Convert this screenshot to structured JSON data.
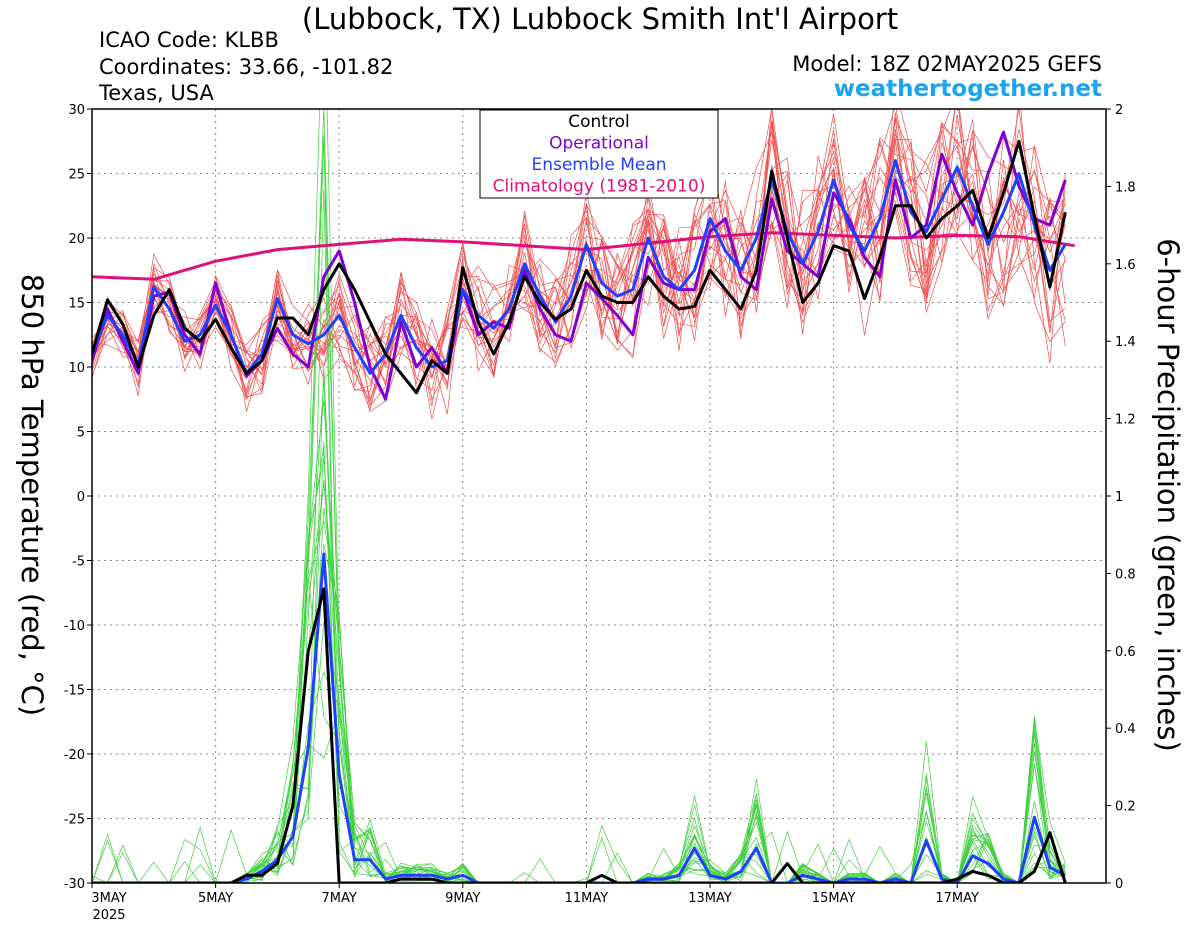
{
  "title": "(Lubbock, TX) Lubbock Smith Int'l Airport",
  "info": {
    "icao": "ICAO Code: KLBB",
    "coords": "Coordinates: 33.66, -101.82",
    "region": "Texas, USA",
    "model": "Model: 18Z 02MAY2025 GEFS",
    "site": "weathertogether.net"
  },
  "chart_data": {
    "type": "line",
    "title": "(Lubbock, TX) Lubbock Smith Int'l Airport",
    "ylabel": "850 hPa Temperature (red, °C)",
    "y2label": "6-hour Precipitation (green, inches)",
    "ylim": [
      -30,
      30
    ],
    "y2lim": [
      0,
      2
    ],
    "xlim_days": [
      0,
      15.9
    ],
    "x_ticks": [
      {
        "day": 0,
        "label": "3MAY",
        "sub": "2025"
      },
      {
        "day": 2,
        "label": "5MAY"
      },
      {
        "day": 4,
        "label": "7MAY"
      },
      {
        "day": 6,
        "label": "9MAY"
      },
      {
        "day": 8,
        "label": "11MAY"
      },
      {
        "day": 10,
        "label": "13MAY"
      },
      {
        "day": 12,
        "label": "15MAY"
      },
      {
        "day": 14,
        "label": "17MAY"
      }
    ],
    "y_ticks": [
      30,
      25,
      20,
      15,
      10,
      5,
      0,
      -5,
      -10,
      -15,
      -20,
      -25,
      -30
    ],
    "y2_ticks": [
      "2",
      "1.8",
      "1.6",
      "1.4",
      "1.2",
      "1",
      "0.8",
      "0.6",
      "0.4",
      "0.2",
      "0"
    ],
    "grid": true,
    "legend": {
      "position": "top-center",
      "entries": [
        {
          "name": "Control",
          "color": "#000000"
        },
        {
          "name": "Operational",
          "color": "#8000d0"
        },
        {
          "name": "Ensemble Mean",
          "color": "#2040ff"
        },
        {
          "name": "Climatology (1981-2010)",
          "color": "#e0107a"
        }
      ]
    },
    "colors": {
      "members_temp": "#f05050",
      "members_precip": "#40d040",
      "control": "#000000",
      "operational": "#8000d0",
      "mean": "#2040ff",
      "climatology": "#e0107a"
    },
    "step_days": 0.25,
    "temperature": {
      "control": [
        11.0,
        15.2,
        13.3,
        10.0,
        14.0,
        16.0,
        13.0,
        12.0,
        13.7,
        11.5,
        9.5,
        10.5,
        13.8,
        13.8,
        12.5,
        16.0,
        18.0,
        16.0,
        13.5,
        11.0,
        9.5,
        8.0,
        10.5,
        9.5,
        17.7,
        13.5,
        11.0,
        13.5,
        17.0,
        15.0,
        13.7,
        14.5,
        17.5,
        15.5,
        15.0,
        15.0,
        17.0,
        15.5,
        14.5,
        14.7,
        17.5,
        16.0,
        14.5,
        17.5,
        25.2,
        20.0,
        15.0,
        16.5,
        19.4,
        19.0,
        15.3,
        18.5,
        22.5,
        22.5,
        20.0,
        21.5,
        22.5,
        23.7,
        20.0,
        23.5,
        27.5,
        21.7,
        16.2,
        22.0
      ],
      "operational": [
        10.5,
        14.5,
        12.0,
        9.5,
        15.5,
        15.8,
        12.5,
        11.0,
        16.5,
        12.5,
        9.3,
        10.5,
        13.0,
        11.0,
        10.0,
        17.0,
        19.0,
        15.0,
        10.0,
        7.5,
        13.5,
        10.0,
        11.5,
        9.5,
        16.0,
        12.5,
        13.5,
        13.0,
        17.5,
        14.5,
        12.5,
        12.0,
        16.5,
        15.3,
        14.0,
        12.5,
        18.5,
        16.5,
        16.0,
        16.0,
        20.5,
        21.5,
        17.0,
        16.0,
        23.0,
        19.0,
        18.0,
        17.0,
        23.5,
        21.5,
        18.5,
        17.0,
        24.5,
        20.0,
        21.0,
        26.5,
        23.5,
        21.0,
        25.0,
        28.2,
        24.0,
        21.5,
        21.0,
        24.5
      ],
      "mean": [
        11.0,
        14.0,
        12.5,
        10.2,
        16.2,
        14.5,
        12.0,
        12.5,
        14.8,
        12.5,
        9.5,
        11.0,
        15.3,
        12.5,
        11.8,
        12.5,
        14.0,
        11.5,
        9.5,
        11.0,
        14.0,
        11.5,
        10.0,
        10.5,
        16.0,
        14.0,
        13.0,
        14.5,
        18.0,
        15.5,
        13.5,
        15.5,
        19.5,
        16.5,
        15.5,
        16.0,
        20.0,
        17.0,
        16.0,
        17.5,
        21.5,
        19.0,
        17.5,
        20.0,
        24.5,
        20.5,
        18.0,
        20.5,
        24.5,
        21.0,
        19.0,
        21.5,
        26.0,
        22.0,
        20.5,
        23.0,
        25.5,
        22.5,
        19.5,
        22.0,
        25.0,
        21.0,
        17.5,
        19.5
      ],
      "climatology_days": [
        0,
        1,
        2,
        3,
        4,
        5,
        6,
        7,
        8,
        9,
        10,
        11,
        12,
        13,
        14,
        15,
        15.9
      ],
      "climatology": [
        17.0,
        16.8,
        18.2,
        19.1,
        19.5,
        19.9,
        19.7,
        19.4,
        19.1,
        19.6,
        20.1,
        20.4,
        20.2,
        20.0,
        20.2,
        20.1,
        19.4
      ]
    },
    "precipitation": {
      "control": [
        0,
        0,
        0,
        0,
        0,
        0,
        0,
        0,
        0,
        0,
        0.02,
        0.02,
        0.05,
        0.2,
        0.6,
        0.76,
        0,
        0,
        0,
        0,
        0.01,
        0.01,
        0.01,
        0,
        0,
        0,
        0,
        0,
        0,
        0,
        0,
        0,
        0,
        0.02,
        0,
        0,
        0,
        0,
        0,
        0,
        0,
        0,
        0,
        0,
        0,
        0.05,
        0,
        0,
        0,
        0,
        0,
        0,
        0,
        0,
        0,
        0,
        0.01,
        0.03,
        0.02,
        0,
        0,
        0.03,
        0.13,
        0
      ],
      "mean": [
        0,
        0,
        0,
        0,
        0,
        0,
        0,
        0,
        0,
        0,
        0.01,
        0.03,
        0.06,
        0.12,
        0.35,
        0.85,
        0.28,
        0.06,
        0.06,
        0.01,
        0.02,
        0.02,
        0.02,
        0.01,
        0.02,
        0,
        0,
        0,
        0,
        0,
        0,
        0,
        0,
        0,
        0,
        0,
        0.01,
        0.01,
        0.02,
        0.09,
        0.02,
        0.01,
        0.03,
        0.09,
        0,
        0,
        0.02,
        0.01,
        0,
        0.01,
        0.01,
        0,
        0.01,
        0,
        0.11,
        0.01,
        0,
        0.07,
        0.05,
        0.01,
        0,
        0.17,
        0.04,
        0.02
      ]
    }
  }
}
